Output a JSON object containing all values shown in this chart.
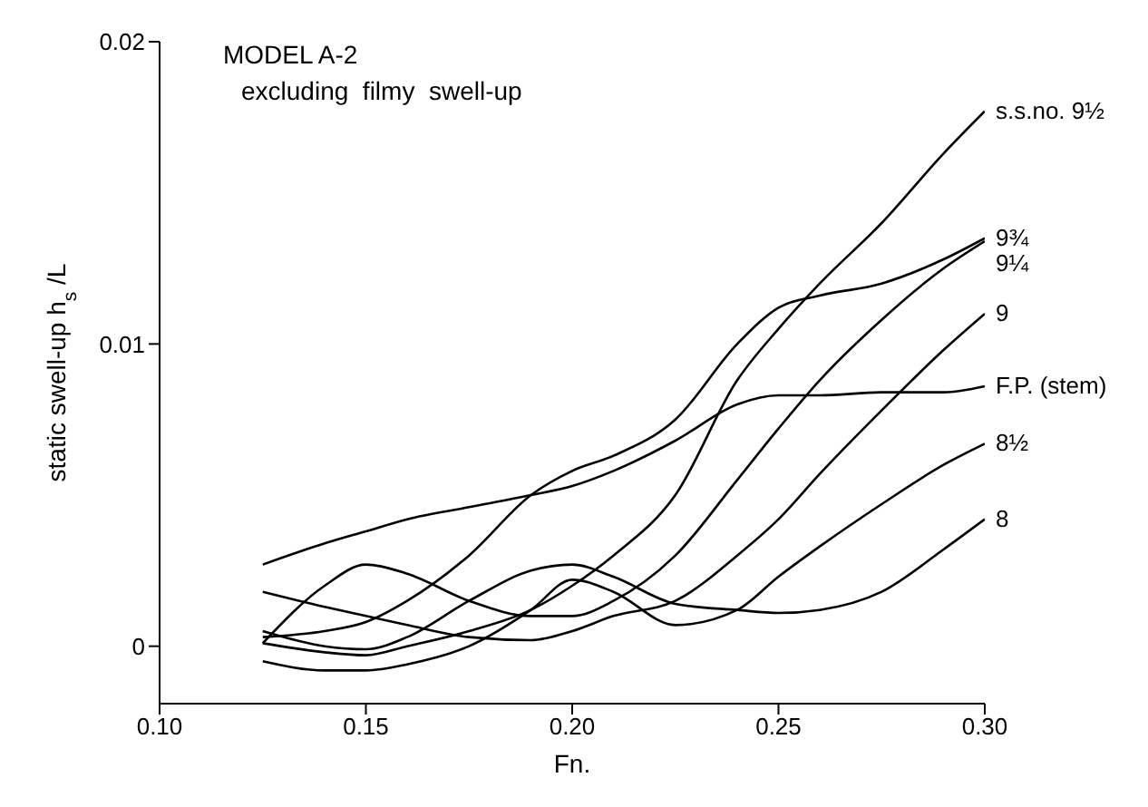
{
  "chart_data": {
    "type": "line",
    "title": "MODEL  A-2",
    "subtitle": "excluding  filmy  swell-up",
    "xlabel": "Fn.",
    "ylabel": "static swell-up    h$_{s}$/L",
    "x": [
      0.125,
      0.14,
      0.15,
      0.16,
      0.175,
      0.19,
      0.2,
      0.21,
      0.225,
      0.24,
      0.25,
      0.26,
      0.275,
      0.29,
      0.3
    ],
    "series": [
      {
        "name": "s.s.no. 9½",
        "color": "#000000",
        "values": [
          0.0001,
          -0.0002,
          -0.0003,
          0.0,
          0.0005,
          0.0012,
          0.002,
          0.003,
          0.005,
          0.0088,
          0.0105,
          0.012,
          0.014,
          0.0163,
          0.0177
        ]
      },
      {
        "name": "9¾",
        "color": "#000000",
        "values": [
          0.0003,
          0.0005,
          0.0008,
          0.0015,
          0.003,
          0.005,
          0.0058,
          0.0063,
          0.0075,
          0.01,
          0.0112,
          0.0116,
          0.012,
          0.0128,
          0.0135
        ]
      },
      {
        "name": "9¼",
        "color": "#000000",
        "values": [
          0.0001,
          0.002,
          0.0027,
          0.0024,
          0.0015,
          0.001,
          0.001,
          0.0015,
          0.003,
          0.0055,
          0.0072,
          0.0088,
          0.0108,
          0.0125,
          0.0134
        ]
      },
      {
        "name": "9",
        "color": "#000000",
        "values": [
          0.0018,
          0.0013,
          0.001,
          0.0007,
          0.0003,
          0.0002,
          0.0005,
          0.001,
          0.0015,
          0.003,
          0.0042,
          0.0057,
          0.0078,
          0.0098,
          0.011
        ]
      },
      {
        "name": "F.P. (stem)",
        "color": "#000000",
        "values": [
          0.0027,
          0.0034,
          0.0038,
          0.0042,
          0.0046,
          0.005,
          0.0053,
          0.0058,
          0.0068,
          0.008,
          0.0083,
          0.0083,
          0.0084,
          0.0084,
          0.0086
        ]
      },
      {
        "name": "8½",
        "color": "#000000",
        "values": [
          -0.0005,
          -0.0008,
          -0.0008,
          -0.0006,
          0.0,
          0.0012,
          0.0022,
          0.0018,
          0.0007,
          0.0012,
          0.0023,
          0.0033,
          0.0047,
          0.006,
          0.0067
        ]
      },
      {
        "name": "8",
        "color": "#000000",
        "values": [
          0.0005,
          0.0,
          -0.0001,
          0.0003,
          0.0015,
          0.0025,
          0.0027,
          0.0023,
          0.0014,
          0.0012,
          0.0011,
          0.0012,
          0.0018,
          0.0032,
          0.0042
        ]
      }
    ],
    "xlim": [
      0.1,
      0.3
    ],
    "xticks": [
      {
        "value": 0.1,
        "label": "0.10"
      },
      {
        "value": 0.15,
        "label": "0.15"
      },
      {
        "value": 0.2,
        "label": "0.20"
      },
      {
        "value": 0.25,
        "label": "0.25"
      },
      {
        "value": 0.3,
        "label": "0.30"
      }
    ],
    "ylim": [
      -0.0019,
      0.02
    ],
    "yticks": [
      0,
      0.01,
      0.02
    ],
    "grid": false,
    "legend": false,
    "marker": "none",
    "line_style": "solid"
  }
}
